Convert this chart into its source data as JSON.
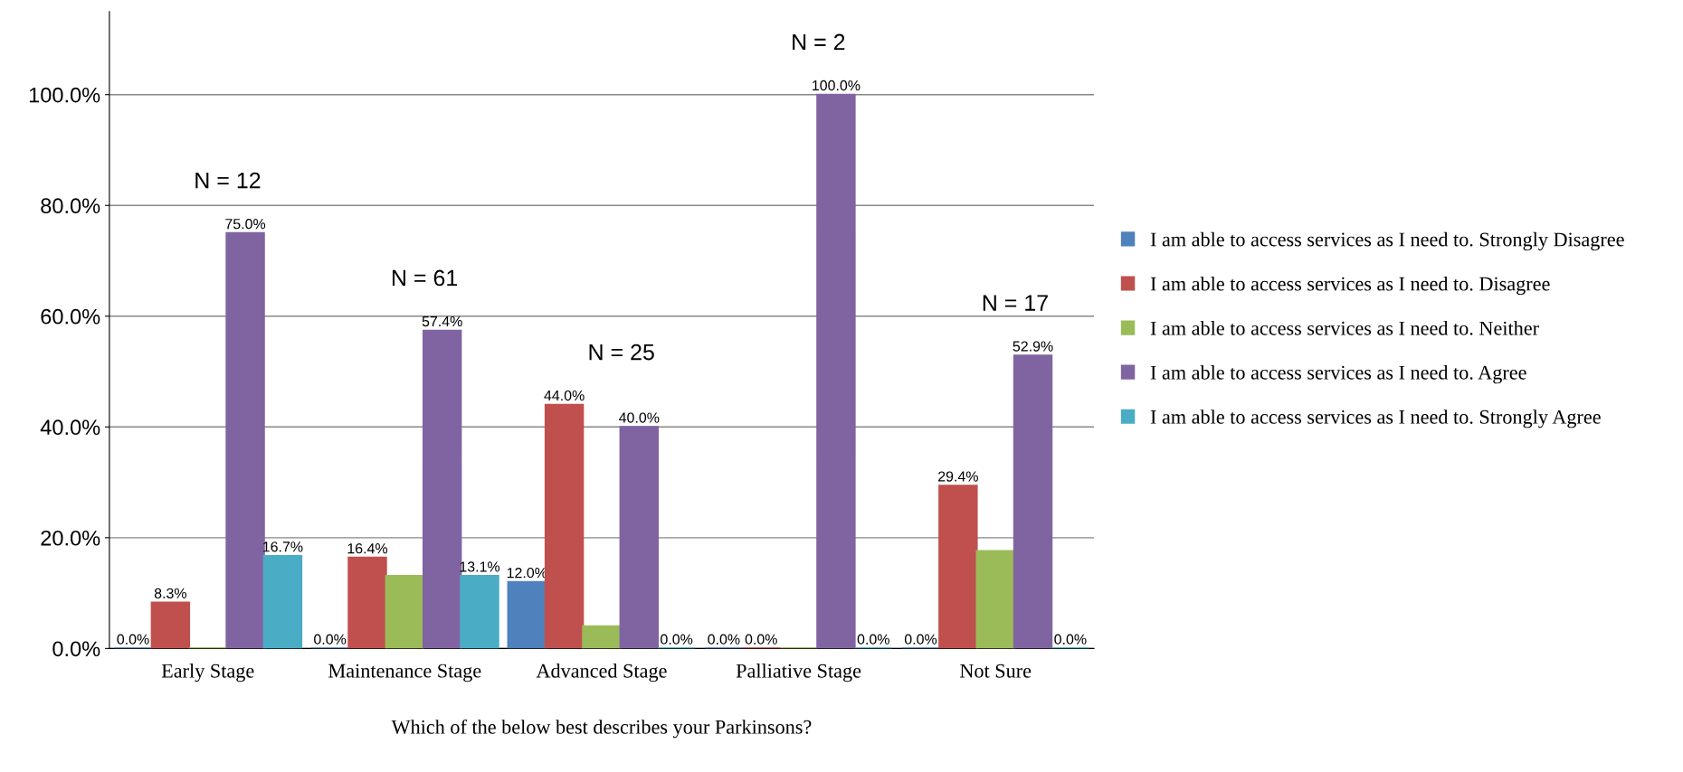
{
  "chart_data": {
    "type": "bar",
    "xlabel": "Which of the below best describes your Parkinsons?",
    "categories": [
      "Early Stage",
      "Maintenance Stage",
      "Advanced Stage",
      "Palliative Stage",
      "Not Sure"
    ],
    "series": [
      {
        "name": "I am able to access services as I need to. Strongly Disagree",
        "color": "#4f81bd",
        "values": [
          0.0,
          0.0,
          12.0,
          0.0,
          0.0
        ],
        "value_labels": [
          "0.0%",
          "0.0%",
          "12.0%",
          "0.0%",
          "0.0%"
        ]
      },
      {
        "name": "I am able to access services as I need to. Disagree",
        "color": "#c0504d",
        "values": [
          8.3,
          16.4,
          44.0,
          0.0,
          29.4
        ],
        "value_labels": [
          "8.3%",
          "16.4%",
          "44.0%",
          "0.0%",
          "29.4%"
        ]
      },
      {
        "name": "I am able to access services as I need to. Neither",
        "color": "#9bbb59",
        "values": [
          0,
          13.1,
          4.0,
          0,
          17.6
        ],
        "value_labels": [
          null,
          null,
          null,
          null,
          null
        ]
      },
      {
        "name": "I am able to access services as I need to. Agree",
        "color": "#8064a2",
        "values": [
          75.0,
          57.4,
          40.0,
          100.0,
          52.9
        ],
        "value_labels": [
          "75.0%",
          "57.4%",
          "40.0%",
          "100.0%",
          "52.9%"
        ]
      },
      {
        "name": "I am able to access services as I need to. Strongly Agree",
        "color": "#4bacc6",
        "values": [
          16.7,
          13.1,
          0.0,
          0.0,
          0.0
        ],
        "value_labels": [
          "16.7%",
          "13.1%",
          "0.0%",
          "0.0%",
          "0.0%"
        ]
      }
    ],
    "ylim": [
      0,
      115
    ],
    "yticks": [
      {
        "value": 0,
        "label": "0.0%"
      },
      {
        "value": 20,
        "label": "20.0%"
      },
      {
        "value": 40,
        "label": "40.0%"
      },
      {
        "value": 60,
        "label": "60.0%"
      },
      {
        "value": 80,
        "label": "80.0%"
      },
      {
        "value": 100,
        "label": "100.0%"
      }
    ],
    "grid": "y",
    "legend": "right",
    "annotations": [
      "N = 12",
      "N = 61",
      "N = 25",
      "N = 2",
      "N = 17"
    ]
  }
}
